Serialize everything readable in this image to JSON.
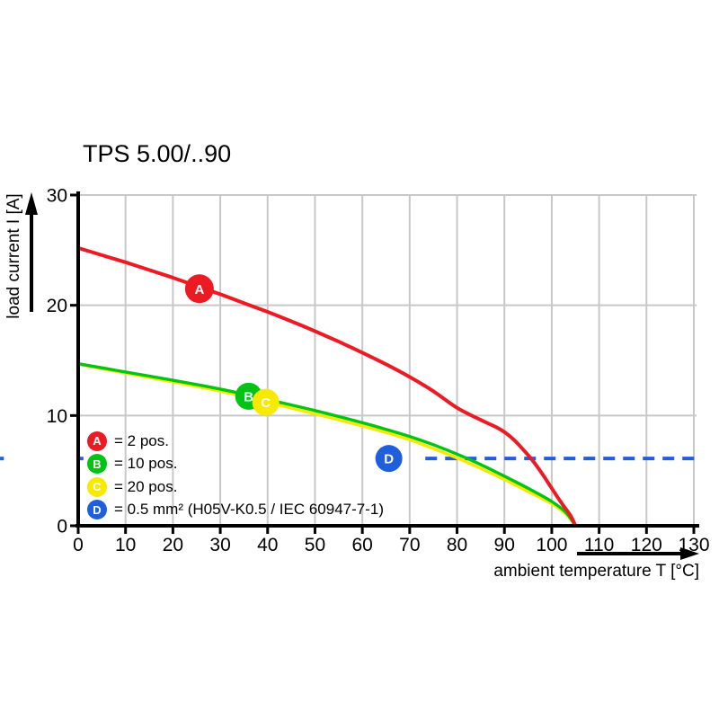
{
  "colors": {
    "red": "#ec1b23",
    "green": "#00c414",
    "yellow": "#f7ea00",
    "blue": "#1f5fde",
    "grid": "#c8c8c8",
    "axis": "#000000",
    "background": "#ffffff"
  },
  "legend": {
    "items": [
      {
        "letter": "A",
        "color_key": "red",
        "label": "= 2 pos."
      },
      {
        "letter": "B",
        "color_key": "green",
        "label": "= 10 pos."
      },
      {
        "letter": "C",
        "color_key": "yellow",
        "label": "= 20 pos."
      },
      {
        "letter": "D",
        "color_key": "blue",
        "label": "= 0.5 mm² (H05V-K0.5 / IEC 60947-7-1)"
      }
    ]
  },
  "chart_data": {
    "type": "line",
    "title": "TPS 5.00/..90",
    "xlabel": "ambient temperature T [°C]",
    "ylabel": "load current I [A]",
    "xlim": [
      0,
      130
    ],
    "ylim": [
      0,
      30
    ],
    "x_ticks": [
      0,
      10,
      20,
      30,
      40,
      50,
      60,
      70,
      80,
      90,
      100,
      110,
      120,
      130
    ],
    "y_ticks": [
      0,
      10,
      20,
      30
    ],
    "grid": true,
    "series": [
      {
        "name": "A = 2 pos.",
        "color_key": "red",
        "style": "solid",
        "width": 4,
        "points": [
          [
            0,
            25.2
          ],
          [
            5,
            24.55
          ],
          [
            10,
            23.9
          ],
          [
            15,
            23.2
          ],
          [
            20,
            22.5
          ],
          [
            25,
            21.75
          ],
          [
            30,
            21.0
          ],
          [
            35,
            20.2
          ],
          [
            40,
            19.4
          ],
          [
            45,
            18.55
          ],
          [
            50,
            17.65
          ],
          [
            55,
            16.7
          ],
          [
            60,
            15.7
          ],
          [
            65,
            14.65
          ],
          [
            70,
            13.5
          ],
          [
            75,
            12.2
          ],
          [
            80,
            10.7
          ],
          [
            85,
            9.6
          ],
          [
            88,
            9.0
          ],
          [
            90,
            8.5
          ],
          [
            92,
            7.8
          ],
          [
            94,
            6.9
          ],
          [
            96,
            5.9
          ],
          [
            98,
            4.7
          ],
          [
            100,
            3.4
          ],
          [
            102,
            2.1
          ],
          [
            104,
            0.9
          ],
          [
            105,
            0
          ]
        ]
      },
      {
        "name": "B = 10 pos.",
        "color_key": "green",
        "style": "solid",
        "width": 3.4,
        "points": [
          [
            0,
            14.7
          ],
          [
            10,
            13.95
          ],
          [
            20,
            13.2
          ],
          [
            30,
            12.4
          ],
          [
            40,
            11.45
          ],
          [
            50,
            10.45
          ],
          [
            60,
            9.35
          ],
          [
            65,
            8.75
          ],
          [
            70,
            8.1
          ],
          [
            75,
            7.35
          ],
          [
            80,
            6.5
          ],
          [
            85,
            5.55
          ],
          [
            90,
            4.5
          ],
          [
            95,
            3.4
          ],
          [
            100,
            2.2
          ],
          [
            103,
            1.2
          ],
          [
            105,
            0
          ]
        ]
      },
      {
        "name": "C = 20 pos.",
        "color_key": "yellow",
        "style": "solid",
        "width": 3.4,
        "points": [
          [
            0,
            14.65
          ],
          [
            10,
            13.85
          ],
          [
            20,
            13.05
          ],
          [
            30,
            12.2
          ],
          [
            40,
            11.2
          ],
          [
            50,
            10.15
          ],
          [
            60,
            9.05
          ],
          [
            65,
            8.45
          ],
          [
            70,
            7.8
          ],
          [
            75,
            7.0
          ],
          [
            80,
            6.15
          ],
          [
            85,
            5.2
          ],
          [
            90,
            4.2
          ],
          [
            95,
            3.1
          ],
          [
            100,
            2.0
          ],
          [
            103,
            1.05
          ],
          [
            105,
            0
          ]
        ]
      },
      {
        "name": "D = 0.5 mm² (H05V-K0.5 / IEC 60947-7-1)",
        "color_key": "blue",
        "style": "dashed",
        "width": 4,
        "points": [
          [
            73.3,
            6.1
          ],
          [
            130.6,
            6.1
          ]
        ],
        "stubs_t": [
          [
            -16.5,
            -15.7
          ],
          [
            -0.2,
            1.1
          ]
        ]
      }
    ],
    "curve_labels": [
      {
        "letter": "A",
        "t": 25.6,
        "i": 21.5,
        "color_key": "red",
        "r": 16
      },
      {
        "letter": "B",
        "t": 36.0,
        "i": 11.75,
        "color_key": "green",
        "r": 15
      },
      {
        "letter": "C",
        "t": 39.6,
        "i": 11.2,
        "color_key": "yellow",
        "r": 15
      },
      {
        "letter": "D",
        "t": 65.6,
        "i": 6.1,
        "color_key": "blue",
        "r": 15
      }
    ]
  }
}
